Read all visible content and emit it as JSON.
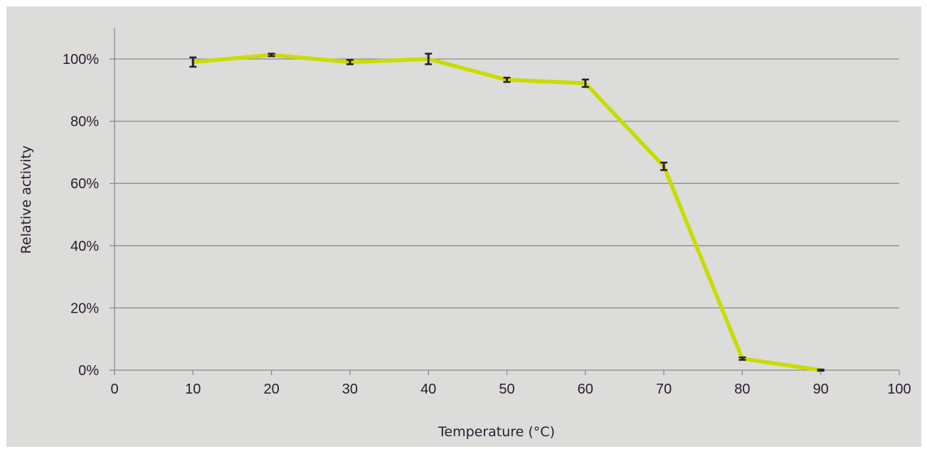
{
  "chart_data": {
    "type": "line",
    "xlabel": "Temperature (°C)",
    "ylabel": "Relative activity",
    "xlim": [
      0,
      100
    ],
    "ylim": [
      0,
      1.0
    ],
    "x_ticks": [
      0,
      10,
      20,
      30,
      40,
      50,
      60,
      70,
      80,
      90,
      100
    ],
    "y_ticks": [
      0,
      0.2,
      0.4,
      0.6,
      0.8,
      1.0
    ],
    "y_tick_labels": [
      "0%",
      "20%",
      "40%",
      "60%",
      "80%",
      "100%"
    ],
    "grid": "horizontal",
    "legend": "none",
    "series": [
      {
        "x": [
          10,
          20,
          30,
          40,
          50,
          60,
          70,
          80,
          90
        ],
        "y": [
          0.99,
          1.013,
          0.99,
          1.0,
          0.933,
          0.922,
          0.655,
          0.037,
          0.0
        ],
        "error": [
          0.015,
          0.004,
          0.007,
          0.017,
          0.007,
          0.012,
          0.012,
          0.004,
          0.002
        ]
      }
    ],
    "colors": {
      "line": "#c8dc00",
      "error_bar": "#2a1b2e",
      "gridline": "#8a8a8a",
      "axis": "#8a8a8a",
      "background": "#dcdcdb"
    }
  }
}
